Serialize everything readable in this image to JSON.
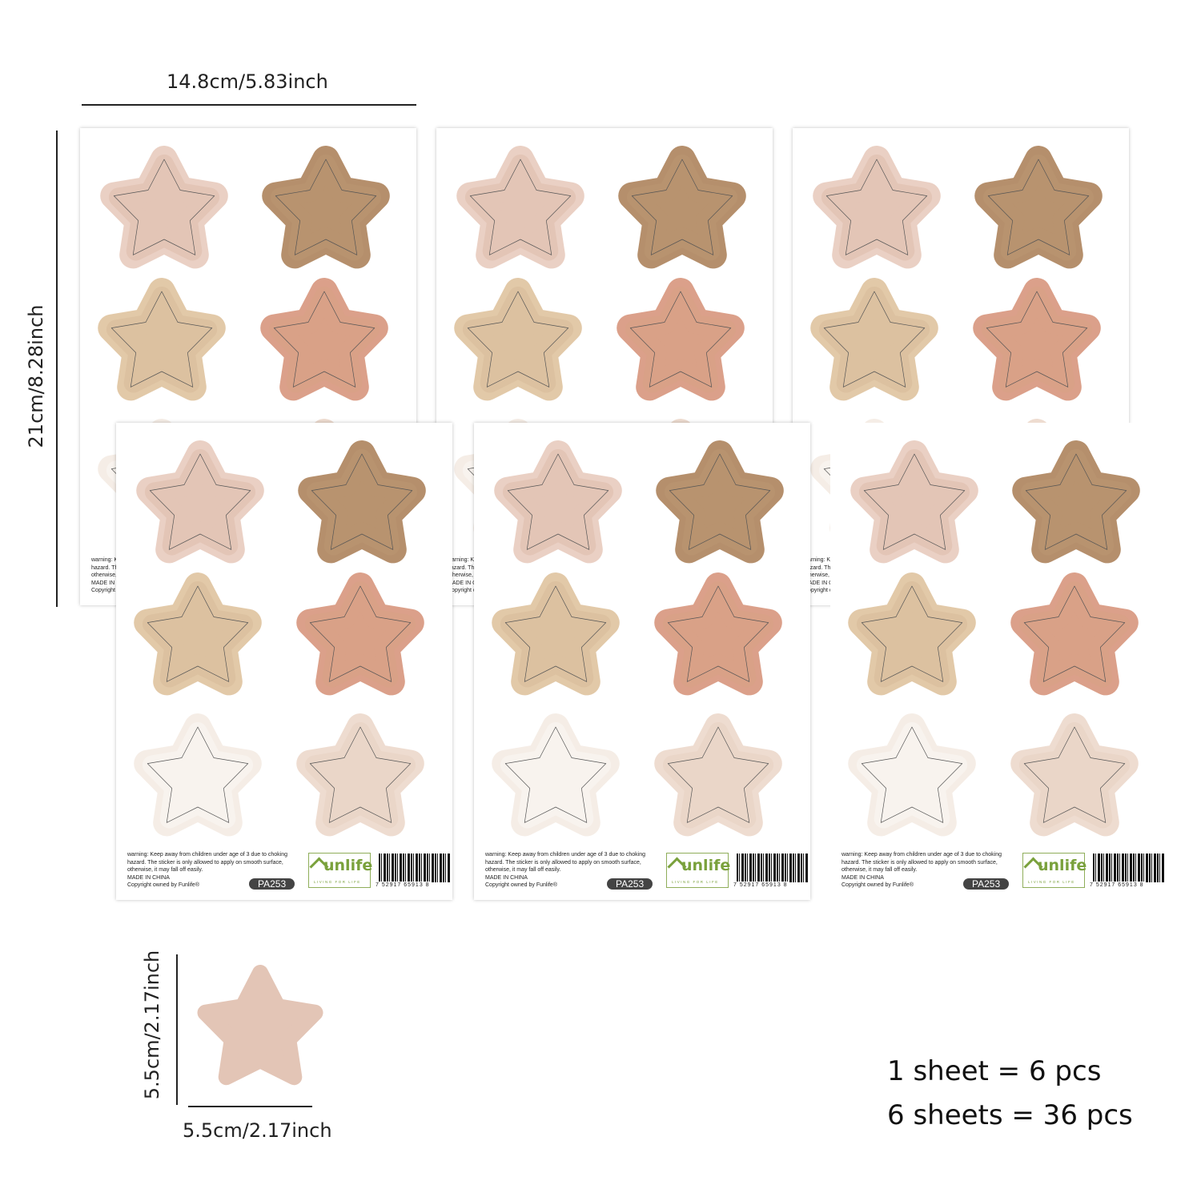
{
  "dimensions": {
    "sheet_width": "14.8cm/5.83inch",
    "sheet_height": "21cm/8.28inch",
    "sticker_height": "5.5cm/2.17inch",
    "sticker_width": "5.5cm/2.17inch"
  },
  "sheet_footer": {
    "warning": "warning: Keep away from children under age of 3 due to choking hazard. The sticker is only allowed to apply on smooth surface, otherwise, it may fall off easily.",
    "made_in": "MADE IN CHINA",
    "copyright": "Copyright owned by Funlife®",
    "product_code": "PA253",
    "logo_text": "Funlife",
    "logo_word": "unlife",
    "logo_tagline": "LIVING FOR LIFE",
    "barcode_number": "7 52917 65913 8"
  },
  "stars": [
    {
      "ring": "#ead0c4",
      "fill": "#e3c5b6"
    },
    {
      "ring": "#b58f6c",
      "fill": "#b8936f"
    },
    {
      "ring": "#e2c9a8",
      "fill": "#dcc1a0"
    },
    {
      "ring": "#dba08a",
      "fill": "#d9a187"
    },
    {
      "ring": "#f5ede6",
      "fill": "#f8f3ee"
    },
    {
      "ring": "#eedcd0",
      "fill": "#ead6c8"
    }
  ],
  "single_star_color": "#e3c5b6",
  "summary": {
    "line1": "1 sheet = 6 pcs",
    "line2": "6 sheets = 36 pcs"
  }
}
